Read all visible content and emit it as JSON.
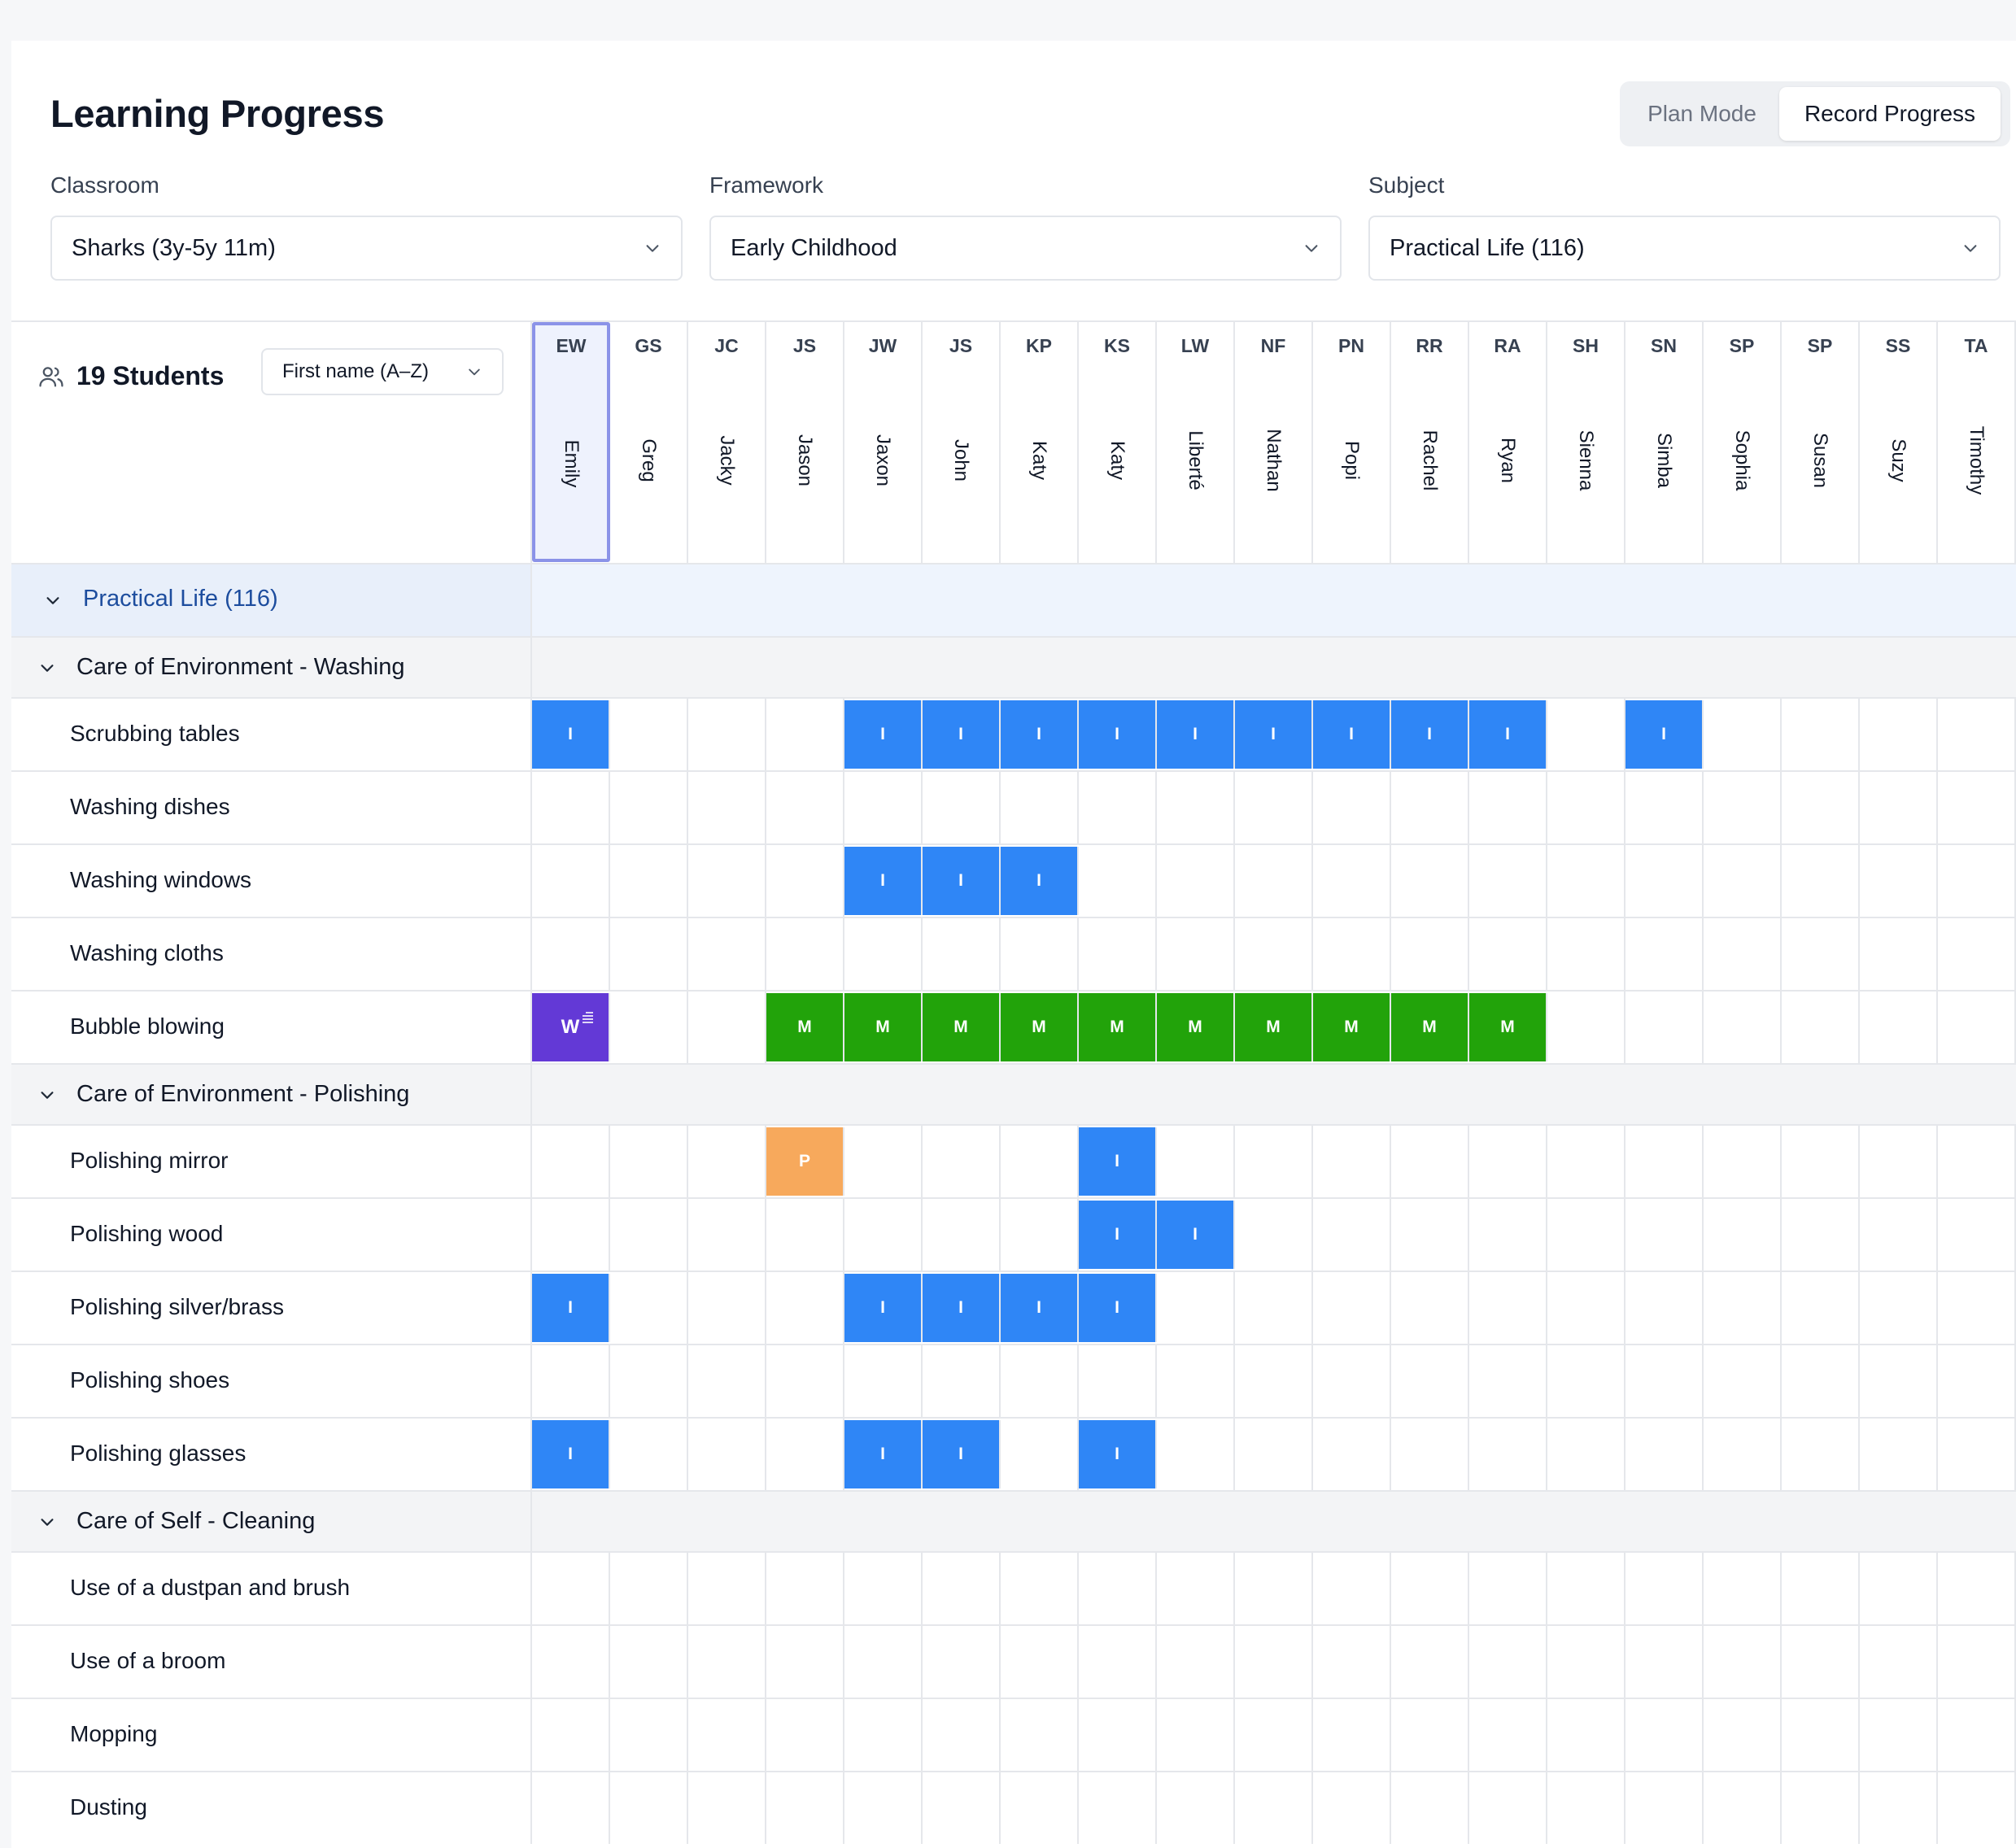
{
  "header": {
    "title": "Learning Progress",
    "plan_mode": "Plan Mode",
    "record_progress": "Record Progress"
  },
  "filters": {
    "classroom": {
      "label": "Classroom",
      "value": "Sharks (3y-5y 11m)"
    },
    "framework": {
      "label": "Framework",
      "value": "Early Childhood"
    },
    "subject": {
      "label": "Subject",
      "value": "Practical Life (116)"
    }
  },
  "students": {
    "count_label": "19 Students",
    "sort": "First name (A–Z)",
    "list": [
      {
        "initials": "EW",
        "name": "Emily"
      },
      {
        "initials": "GS",
        "name": "Greg"
      },
      {
        "initials": "JC",
        "name": "Jacky"
      },
      {
        "initials": "JS",
        "name": "Jason"
      },
      {
        "initials": "JW",
        "name": "Jaxon"
      },
      {
        "initials": "JS",
        "name": "John"
      },
      {
        "initials": "KP",
        "name": "Katy"
      },
      {
        "initials": "KS",
        "name": "Katy"
      },
      {
        "initials": "LW",
        "name": "Liberté"
      },
      {
        "initials": "NF",
        "name": "Nathan"
      },
      {
        "initials": "PN",
        "name": "Popi"
      },
      {
        "initials": "RR",
        "name": "Rachel"
      },
      {
        "initials": "RA",
        "name": "Ryan"
      },
      {
        "initials": "SH",
        "name": "Sienna"
      },
      {
        "initials": "SN",
        "name": "Simba"
      },
      {
        "initials": "SP",
        "name": "Sophia"
      },
      {
        "initials": "SP",
        "name": "Susan"
      },
      {
        "initials": "SS",
        "name": "Suzy"
      },
      {
        "initials": "TA",
        "name": "Timothy"
      }
    ]
  },
  "grid": {
    "subject_label": "Practical Life (116)",
    "categories": [
      {
        "name": "Care of Environment - Washing",
        "activities": [
          {
            "name": "Scrubbing tables",
            "cells": [
              "I",
              "",
              "",
              "",
              "I",
              "I",
              "I",
              "I",
              "I",
              "I",
              "I",
              "I",
              "I",
              "",
              "I",
              "",
              "",
              "",
              ""
            ]
          },
          {
            "name": "Washing dishes",
            "cells": [
              "",
              "",
              "",
              "",
              "",
              "",
              "",
              "",
              "",
              "",
              "",
              "",
              "",
              "",
              "",
              "",
              "",
              "",
              ""
            ]
          },
          {
            "name": "Washing windows",
            "cells": [
              "",
              "",
              "",
              "",
              "I",
              "I",
              "I",
              "",
              "",
              "",
              "",
              "",
              "",
              "",
              "",
              "",
              "",
              "",
              ""
            ]
          },
          {
            "name": "Washing cloths",
            "cells": [
              "",
              "",
              "",
              "",
              "",
              "",
              "",
              "",
              "",
              "",
              "",
              "",
              "",
              "",
              "",
              "",
              "",
              "",
              ""
            ]
          },
          {
            "name": "Bubble blowing",
            "cells": [
              "W",
              "",
              "",
              "M",
              "M",
              "M",
              "M",
              "M",
              "M",
              "M",
              "M",
              "M",
              "M",
              "",
              "",
              "",
              "",
              "",
              ""
            ]
          }
        ]
      },
      {
        "name": "Care of Environment - Polishing",
        "activities": [
          {
            "name": "Polishing mirror",
            "cells": [
              "",
              "",
              "",
              "P",
              "",
              "",
              "",
              "I",
              "",
              "",
              "",
              "",
              "",
              "",
              "",
              "",
              "",
              "",
              ""
            ]
          },
          {
            "name": "Polishing wood",
            "cells": [
              "",
              "",
              "",
              "",
              "",
              "",
              "",
              "I",
              "I",
              "",
              "",
              "",
              "",
              "",
              "",
              "",
              "",
              "",
              ""
            ]
          },
          {
            "name": "Polishing silver/brass",
            "cells": [
              "I",
              "",
              "",
              "",
              "I",
              "I",
              "I",
              "I",
              "",
              "",
              "",
              "",
              "",
              "",
              "",
              "",
              "",
              "",
              ""
            ]
          },
          {
            "name": "Polishing shoes",
            "cells": [
              "",
              "",
              "",
              "",
              "",
              "",
              "",
              "",
              "",
              "",
              "",
              "",
              "",
              "",
              "",
              "",
              "",
              "",
              ""
            ]
          },
          {
            "name": "Polishing glasses",
            "cells": [
              "I",
              "",
              "",
              "",
              "I",
              "I",
              "",
              "I",
              "",
              "",
              "",
              "",
              "",
              "",
              "",
              "",
              "",
              "",
              ""
            ]
          }
        ]
      },
      {
        "name": "Care of Self - Cleaning",
        "activities": [
          {
            "name": "Use of a dustpan and brush",
            "cells": [
              "",
              "",
              "",
              "",
              "",
              "",
              "",
              "",
              "",
              "",
              "",
              "",
              "",
              "",
              "",
              "",
              "",
              "",
              ""
            ]
          },
          {
            "name": "Use of a broom",
            "cells": [
              "",
              "",
              "",
              "",
              "",
              "",
              "",
              "",
              "",
              "",
              "",
              "",
              "",
              "",
              "",
              "",
              "",
              "",
              ""
            ]
          },
          {
            "name": "Mopping",
            "cells": [
              "",
              "",
              "",
              "",
              "",
              "",
              "",
              "",
              "",
              "",
              "",
              "",
              "",
              "",
              "",
              "",
              "",
              "",
              ""
            ]
          },
          {
            "name": "Dusting",
            "cells": [
              "",
              "",
              "",
              "",
              "",
              "",
              "",
              "",
              "",
              "",
              "",
              "",
              "",
              "",
              "",
              "",
              "",
              "",
              ""
            ]
          }
        ]
      }
    ]
  },
  "colors": {
    "introduced": "#2f86f6",
    "mastered": "#22a30a",
    "practicing": "#f7a95c",
    "working": "#6339d6"
  }
}
